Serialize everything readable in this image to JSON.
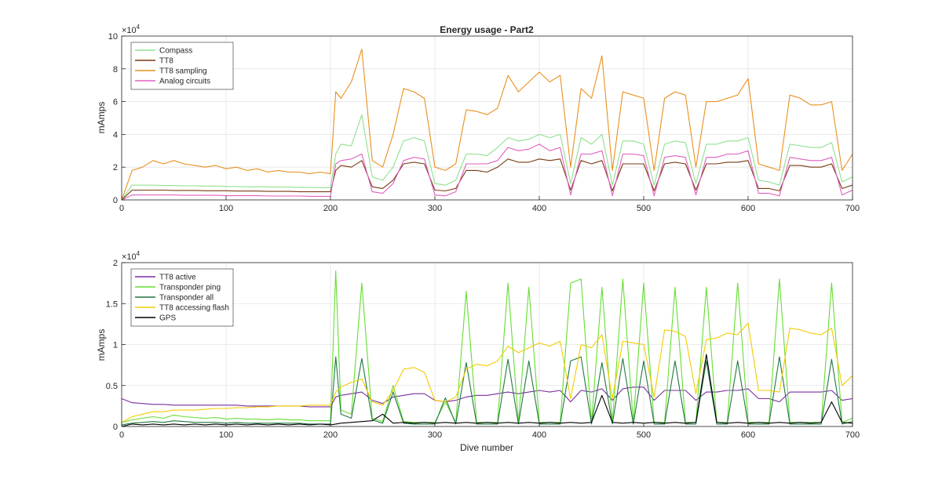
{
  "chart_data": [
    {
      "type": "line",
      "title": "Energy usage - Part2",
      "xlabel": "",
      "ylabel": "mAmps",
      "y_exponent_label": "×10",
      "y_exponent_power": "4",
      "xlim": [
        0,
        700
      ],
      "ylim": [
        0,
        100000
      ],
      "xticks": [
        0,
        100,
        200,
        300,
        400,
        500,
        600,
        700
      ],
      "yticks": [
        0,
        20000,
        40000,
        60000,
        80000,
        100000
      ],
      "ytick_labels": [
        "0",
        "2",
        "4",
        "6",
        "8",
        "10"
      ],
      "grid": true,
      "legend_position": "top-left",
      "x": [
        0,
        10,
        20,
        30,
        40,
        50,
        60,
        70,
        80,
        90,
        100,
        110,
        120,
        130,
        140,
        150,
        160,
        170,
        180,
        190,
        200,
        205,
        210,
        220,
        230,
        240,
        250,
        260,
        270,
        280,
        290,
        300,
        310,
        320,
        330,
        340,
        350,
        360,
        370,
        380,
        390,
        400,
        410,
        420,
        430,
        440,
        450,
        460,
        470,
        480,
        490,
        500,
        510,
        520,
        530,
        540,
        550,
        560,
        570,
        580,
        590,
        600,
        610,
        620,
        630,
        640,
        650,
        660,
        670,
        680,
        690,
        700
      ],
      "series": [
        {
          "name": "Compass",
          "color": "#8fe08f",
          "values": [
            0,
            9000,
            9000,
            9000,
            8800,
            8800,
            8600,
            8600,
            8400,
            8400,
            8200,
            8200,
            8000,
            8000,
            8000,
            7800,
            7800,
            7600,
            7600,
            7400,
            7400,
            28000,
            34000,
            33000,
            52000,
            14000,
            12000,
            20000,
            36000,
            38000,
            36000,
            10000,
            9000,
            12000,
            28000,
            28000,
            27000,
            32000,
            38000,
            36000,
            37000,
            40000,
            38000,
            40000,
            10000,
            38000,
            34000,
            40000,
            9000,
            36000,
            36000,
            34000,
            9000,
            34000,
            36000,
            35000,
            10000,
            34000,
            34000,
            36000,
            36000,
            38000,
            12000,
            11000,
            9000,
            34000,
            33000,
            32000,
            32000,
            35000,
            11000,
            14000
          ]
        },
        {
          "name": "TT8",
          "color": "#7a3a14",
          "values": [
            0,
            6000,
            6000,
            6000,
            6000,
            5800,
            5800,
            5800,
            5600,
            5600,
            5600,
            5400,
            5400,
            5400,
            5200,
            5200,
            5200,
            5000,
            5000,
            5000,
            5000,
            18000,
            21000,
            20000,
            24000,
            8000,
            7000,
            12000,
            22000,
            23000,
            22000,
            6000,
            5500,
            7000,
            18000,
            18000,
            17000,
            20000,
            25000,
            23000,
            23000,
            25000,
            24000,
            25000,
            6000,
            24000,
            22000,
            24000,
            5500,
            22000,
            22000,
            22000,
            5500,
            22000,
            23000,
            22000,
            6000,
            22000,
            22000,
            23000,
            23000,
            24000,
            7000,
            7000,
            5500,
            21000,
            21000,
            20000,
            20000,
            22000,
            7000,
            9000
          ]
        },
        {
          "name": "TT8 sampling",
          "color": "#e8901e",
          "values": [
            0,
            18000,
            20000,
            24000,
            22000,
            24000,
            22000,
            21000,
            20000,
            21000,
            19000,
            20000,
            18000,
            19000,
            17000,
            18000,
            17000,
            17000,
            16000,
            17000,
            16000,
            66000,
            62000,
            72000,
            92000,
            24000,
            20000,
            40000,
            68000,
            66000,
            62000,
            20000,
            18000,
            22000,
            55000,
            54000,
            52000,
            56000,
            76000,
            66000,
            72000,
            78000,
            72000,
            76000,
            20000,
            68000,
            62000,
            88000,
            18000,
            66000,
            64000,
            62000,
            18000,
            62000,
            66000,
            64000,
            20000,
            60000,
            60000,
            62000,
            64000,
            74000,
            22000,
            20000,
            18000,
            64000,
            62000,
            58000,
            58000,
            60000,
            18000,
            28000
          ]
        },
        {
          "name": "Analog circuits",
          "color": "#e060c0",
          "values": [
            0,
            3000,
            3000,
            3000,
            3000,
            3000,
            2800,
            2800,
            2800,
            2800,
            2600,
            2600,
            2600,
            2600,
            2400,
            2400,
            2400,
            2400,
            2200,
            2200,
            2200,
            22000,
            24000,
            25000,
            28000,
            5000,
            4000,
            10000,
            24000,
            26000,
            25000,
            3000,
            2500,
            5000,
            22000,
            22000,
            22000,
            24000,
            32000,
            30000,
            31000,
            34000,
            30000,
            32000,
            3000,
            28000,
            28000,
            30000,
            2500,
            28000,
            28000,
            27000,
            2500,
            26000,
            27000,
            26000,
            3000,
            26000,
            26000,
            28000,
            28000,
            30000,
            4000,
            4000,
            2500,
            26000,
            25000,
            24000,
            24000,
            26000,
            3000,
            6000
          ]
        }
      ]
    },
    {
      "type": "line",
      "title": "",
      "xlabel": "Dive number",
      "ylabel": "mAmps",
      "y_exponent_label": "×10",
      "y_exponent_power": "4",
      "xlim": [
        0,
        700
      ],
      "ylim": [
        0,
        20000
      ],
      "xticks": [
        0,
        100,
        200,
        300,
        400,
        500,
        600,
        700
      ],
      "yticks": [
        0,
        5000,
        10000,
        15000,
        20000
      ],
      "ytick_labels": [
        "0",
        "0.5",
        "1",
        "1.5",
        "2"
      ],
      "grid": true,
      "legend_position": "top-left",
      "x": [
        0,
        10,
        20,
        30,
        40,
        50,
        60,
        70,
        80,
        90,
        100,
        110,
        120,
        130,
        140,
        150,
        160,
        170,
        180,
        190,
        200,
        205,
        210,
        220,
        230,
        240,
        250,
        260,
        270,
        280,
        290,
        300,
        310,
        320,
        330,
        340,
        350,
        360,
        370,
        380,
        390,
        400,
        410,
        420,
        430,
        440,
        450,
        460,
        470,
        480,
        490,
        500,
        510,
        520,
        530,
        540,
        550,
        560,
        570,
        580,
        590,
        600,
        610,
        620,
        630,
        640,
        650,
        660,
        670,
        680,
        690,
        700
      ],
      "series": [
        {
          "name": "TT8 active",
          "color": "#7a2ea0",
          "values": [
            3400,
            2900,
            2800,
            2700,
            2700,
            2600,
            2600,
            2600,
            2600,
            2600,
            2600,
            2600,
            2500,
            2500,
            2500,
            2500,
            2500,
            2500,
            2400,
            2400,
            2400,
            3600,
            3800,
            4000,
            4200,
            3200,
            2800,
            3600,
            3800,
            4000,
            4000,
            3200,
            3000,
            3200,
            3600,
            3800,
            3800,
            4000,
            4200,
            4000,
            4200,
            4400,
            4200,
            4400,
            3000,
            4400,
            4200,
            4600,
            3200,
            4600,
            4800,
            4800,
            3200,
            4400,
            4400,
            4400,
            3200,
            4200,
            4200,
            4400,
            4400,
            4600,
            3400,
            3400,
            3000,
            4200,
            4200,
            4200,
            4200,
            4400,
            3200,
            3400
          ]
        },
        {
          "name": "Transponder ping",
          "color": "#66dd33",
          "values": [
            500,
            800,
            1000,
            1200,
            1000,
            1400,
            1200,
            1100,
            1000,
            1100,
            900,
            1000,
            900,
            900,
            800,
            900,
            800,
            800,
            700,
            700,
            700,
            19000,
            2000,
            1500,
            17500,
            1000,
            600,
            5000,
            600,
            500,
            500,
            500,
            3000,
            500,
            16500,
            500,
            500,
            500,
            17500,
            500,
            17000,
            500,
            500,
            500,
            17500,
            18000,
            500,
            17000,
            500,
            18000,
            500,
            17500,
            500,
            500,
            17000,
            500,
            500,
            17000,
            500,
            500,
            17500,
            500,
            500,
            500,
            18000,
            500,
            500,
            500,
            500,
            17500,
            500,
            1000
          ]
        },
        {
          "name": "Transponder all",
          "color": "#227744",
          "values": [
            200,
            400,
            500,
            600,
            500,
            700,
            600,
            500,
            500,
            500,
            400,
            500,
            400,
            400,
            400,
            400,
            400,
            400,
            300,
            300,
            300,
            8500,
            1500,
            1000,
            8300,
            800,
            400,
            4200,
            400,
            300,
            300,
            300,
            3500,
            300,
            7800,
            300,
            300,
            300,
            8200,
            300,
            8000,
            300,
            300,
            300,
            8000,
            8500,
            300,
            7800,
            300,
            8300,
            300,
            8000,
            300,
            300,
            8000,
            300,
            300,
            8000,
            300,
            300,
            8000,
            300,
            300,
            300,
            8500,
            300,
            300,
            300,
            300,
            8200,
            300,
            600
          ]
        },
        {
          "name": "TT8 accessing flash",
          "color": "#f2cc00",
          "values": [
            500,
            1200,
            1500,
            1800,
            1800,
            2000,
            2000,
            2000,
            2100,
            2200,
            2200,
            2300,
            2300,
            2400,
            2400,
            2500,
            2500,
            2500,
            2600,
            2600,
            2600,
            4200,
            4800,
            5400,
            5800,
            3000,
            2600,
            4400,
            7000,
            7200,
            6600,
            3200,
            3000,
            3600,
            7000,
            7600,
            7400,
            8000,
            9800,
            9000,
            9600,
            10200,
            9800,
            10400,
            3400,
            10000,
            9600,
            11200,
            3400,
            10400,
            10200,
            10000,
            3600,
            11800,
            11600,
            11000,
            4000,
            10600,
            10800,
            11400,
            11200,
            12600,
            4400,
            4400,
            4200,
            12000,
            11800,
            11400,
            11200,
            12000,
            5000,
            6200
          ]
        },
        {
          "name": "GPS",
          "color": "#000000",
          "values": [
            0,
            300,
            200,
            300,
            200,
            300,
            200,
            300,
            200,
            300,
            200,
            300,
            200,
            300,
            200,
            300,
            200,
            300,
            200,
            300,
            200,
            300,
            400,
            500,
            600,
            700,
            1500,
            400,
            500,
            400,
            500,
            400,
            500,
            400,
            500,
            400,
            500,
            400,
            500,
            400,
            500,
            400,
            500,
            400,
            500,
            400,
            500,
            3800,
            500,
            400,
            500,
            400,
            500,
            400,
            500,
            400,
            500,
            8800,
            500,
            400,
            500,
            400,
            500,
            400,
            500,
            400,
            500,
            400,
            500,
            3000,
            500,
            400
          ]
        }
      ]
    }
  ]
}
